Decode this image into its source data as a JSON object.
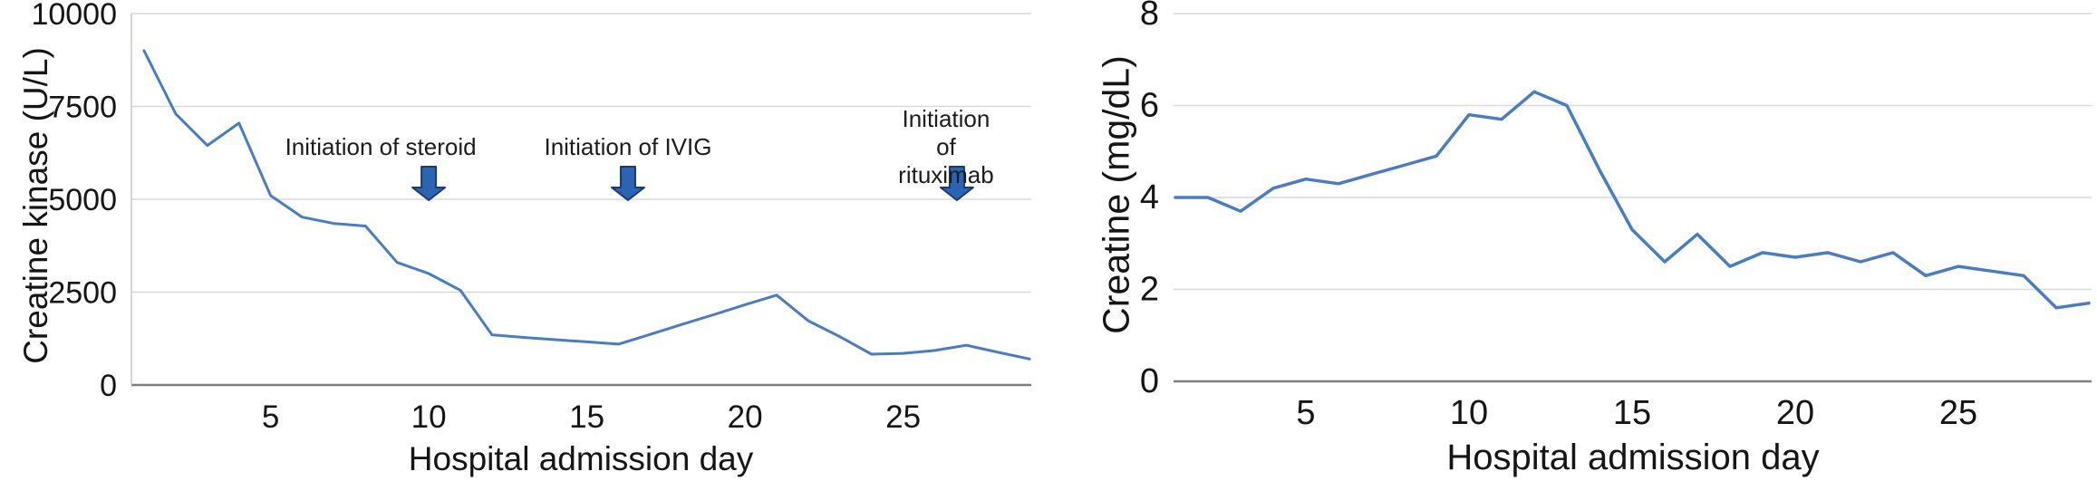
{
  "figure": {
    "background": "#ffffff",
    "line_color": "#4a7cc2",
    "grid_color": "#d9d9d9",
    "axis_color": "#808080",
    "arrow_fill": "#2c64b4",
    "arrow_border": "#1c3a6e"
  },
  "chart_data": [
    {
      "type": "line",
      "title": "",
      "xlabel": "Hospital admission day",
      "ylabel": "Creatine kinase (U/L)",
      "x": [
        1,
        2,
        3,
        4,
        5,
        6,
        7,
        8,
        9,
        10,
        11,
        12,
        13,
        14,
        15,
        16,
        17,
        18,
        19,
        20,
        21,
        22,
        23,
        24,
        25,
        26,
        27,
        28,
        29
      ],
      "series": [
        {
          "name": "Creatine kinase",
          "values": [
            9000,
            7300,
            6450,
            7050,
            5100,
            4520,
            4350,
            4280,
            3300,
            3000,
            2550,
            1350,
            1280,
            1220,
            1160,
            1100,
            1360,
            1630,
            1890,
            2160,
            2420,
            1730,
            1300,
            830,
            850,
            930,
            1070,
            880,
            700
          ]
        }
      ],
      "ylim": [
        0,
        10000
      ],
      "yticks": [
        0,
        2500,
        5000,
        7500,
        10000
      ],
      "ytick_labels": [
        "0",
        "2500",
        "5000",
        "7500",
        "10000"
      ],
      "xticks": [
        5,
        10,
        15,
        20,
        25
      ],
      "xtick_labels": [
        "5",
        "10",
        "15",
        "20",
        "25"
      ],
      "grid": true,
      "legend": "none",
      "annotations": [
        {
          "text": "Initiation of steroid",
          "day": 10,
          "text_dx": -53
        },
        {
          "text": "Initiation of IVIG",
          "day": 16.3,
          "text_dx": 0
        },
        {
          "text": "Initiation of\nrituximab",
          "day": 26.7,
          "text_dx": -12
        }
      ]
    },
    {
      "type": "line",
      "title": "",
      "xlabel": "Hospital admission day",
      "ylabel": "Creatine (mg/dL)",
      "x": [
        1,
        2,
        3,
        4,
        5,
        6,
        7,
        8,
        9,
        10,
        11,
        12,
        13,
        14,
        15,
        16,
        17,
        18,
        19,
        20,
        21,
        22,
        23,
        24,
        25,
        26,
        27,
        28,
        29
      ],
      "series": [
        {
          "name": "Creatine",
          "values": [
            4.0,
            4.0,
            3.7,
            4.2,
            4.4,
            4.3,
            4.5,
            4.7,
            4.9,
            5.8,
            5.7,
            6.3,
            6.0,
            4.6,
            3.3,
            2.6,
            3.2,
            2.5,
            2.8,
            2.7,
            2.8,
            2.6,
            2.8,
            2.3,
            2.5,
            2.4,
            2.3,
            1.6,
            1.7
          ]
        }
      ],
      "ylim": [
        0,
        8
      ],
      "yticks": [
        0,
        2,
        4,
        6,
        8
      ],
      "ytick_labels": [
        "0",
        "2",
        "4",
        "6",
        "8"
      ],
      "xticks": [
        5,
        10,
        15,
        20,
        25
      ],
      "xtick_labels": [
        "5",
        "10",
        "15",
        "20",
        "25"
      ],
      "grid": true,
      "legend": "none",
      "annotations": []
    }
  ]
}
